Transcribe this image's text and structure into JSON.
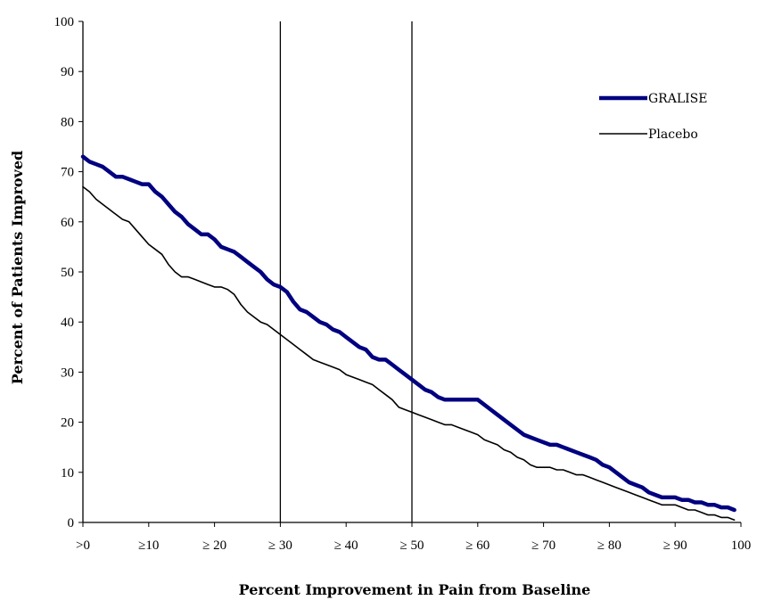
{
  "chart_data": {
    "type": "line",
    "xlabel": "Percent Improvement in Pain from Baseline",
    "ylabel": "Percent of Patients Improved",
    "xlim": [
      0,
      100
    ],
    "ylim": [
      0,
      100
    ],
    "x_tick_labels": [
      {
        "x": 0,
        "label": ">0"
      },
      {
        "x": 10,
        "label": "≥10"
      },
      {
        "x": 20,
        "label": "≥ 20"
      },
      {
        "x": 30,
        "label": "≥ 30"
      },
      {
        "x": 40,
        "label": "≥ 40"
      },
      {
        "x": 50,
        "label": "≥ 50"
      },
      {
        "x": 60,
        "label": "≥ 60"
      },
      {
        "x": 70,
        "label": "≥ 70"
      },
      {
        "x": 80,
        "label": "≥ 80"
      },
      {
        "x": 90,
        "label": "≥ 90"
      },
      {
        "x": 100,
        "label": "100"
      }
    ],
    "y_ticks": [
      0,
      10,
      20,
      30,
      40,
      50,
      60,
      70,
      80,
      90,
      100
    ],
    "reference_lines_x": [
      30,
      50
    ],
    "legend_position": "top-right",
    "grid": false,
    "series": [
      {
        "name": "GRALISE",
        "color": "#000080",
        "points": [
          [
            0,
            73
          ],
          [
            1,
            72
          ],
          [
            2,
            71.5
          ],
          [
            3,
            71
          ],
          [
            4,
            70
          ],
          [
            5,
            69
          ],
          [
            6,
            69
          ],
          [
            7,
            68.5
          ],
          [
            8,
            68
          ],
          [
            9,
            67.5
          ],
          [
            10,
            67.5
          ],
          [
            11,
            66
          ],
          [
            12,
            65
          ],
          [
            13,
            63.5
          ],
          [
            14,
            62
          ],
          [
            15,
            61
          ],
          [
            16,
            59.5
          ],
          [
            17,
            58.5
          ],
          [
            18,
            57.5
          ],
          [
            19,
            57.5
          ],
          [
            20,
            56.5
          ],
          [
            21,
            55
          ],
          [
            22,
            54.5
          ],
          [
            23,
            54
          ],
          [
            24,
            53
          ],
          [
            25,
            52
          ],
          [
            26,
            51
          ],
          [
            27,
            50
          ],
          [
            28,
            48.5
          ],
          [
            29,
            47.5
          ],
          [
            30,
            47
          ],
          [
            31,
            46
          ],
          [
            32,
            44
          ],
          [
            33,
            42.5
          ],
          [
            34,
            42
          ],
          [
            35,
            41
          ],
          [
            36,
            40
          ],
          [
            37,
            39.5
          ],
          [
            38,
            38.5
          ],
          [
            39,
            38
          ],
          [
            40,
            37
          ],
          [
            41,
            36
          ],
          [
            42,
            35
          ],
          [
            43,
            34.5
          ],
          [
            44,
            33
          ],
          [
            45,
            32.5
          ],
          [
            46,
            32.5
          ],
          [
            47,
            31.5
          ],
          [
            48,
            30.5
          ],
          [
            49,
            29.5
          ],
          [
            50,
            28.5
          ],
          [
            51,
            27.5
          ],
          [
            52,
            26.5
          ],
          [
            53,
            26
          ],
          [
            54,
            25
          ],
          [
            55,
            24.5
          ],
          [
            56,
            24.5
          ],
          [
            57,
            24.5
          ],
          [
            58,
            24.5
          ],
          [
            59,
            24.5
          ],
          [
            60,
            24.5
          ],
          [
            61,
            23.5
          ],
          [
            62,
            22.5
          ],
          [
            63,
            21.5
          ],
          [
            64,
            20.5
          ],
          [
            65,
            19.5
          ],
          [
            66,
            18.5
          ],
          [
            67,
            17.5
          ],
          [
            68,
            17
          ],
          [
            69,
            16.5
          ],
          [
            70,
            16
          ],
          [
            71,
            15.5
          ],
          [
            72,
            15.5
          ],
          [
            73,
            15
          ],
          [
            74,
            14.5
          ],
          [
            75,
            14
          ],
          [
            76,
            13.5
          ],
          [
            77,
            13
          ],
          [
            78,
            12.5
          ],
          [
            79,
            11.5
          ],
          [
            80,
            11
          ],
          [
            81,
            10
          ],
          [
            82,
            9
          ],
          [
            83,
            8
          ],
          [
            84,
            7.5
          ],
          [
            85,
            7
          ],
          [
            86,
            6
          ],
          [
            87,
            5.5
          ],
          [
            88,
            5
          ],
          [
            89,
            5
          ],
          [
            90,
            5
          ],
          [
            91,
            4.5
          ],
          [
            92,
            4.5
          ],
          [
            93,
            4
          ],
          [
            94,
            4
          ],
          [
            95,
            3.5
          ],
          [
            96,
            3.5
          ],
          [
            97,
            3
          ],
          [
            98,
            3
          ],
          [
            99,
            2.5
          ]
        ]
      },
      {
        "name": "Placebo",
        "color": "#000000",
        "points": [
          [
            0,
            67
          ],
          [
            1,
            66
          ],
          [
            2,
            64.5
          ],
          [
            3,
            63.5
          ],
          [
            4,
            62.5
          ],
          [
            5,
            61.5
          ],
          [
            6,
            60.5
          ],
          [
            7,
            60
          ],
          [
            8,
            58.5
          ],
          [
            9,
            57
          ],
          [
            10,
            55.5
          ],
          [
            11,
            54.5
          ],
          [
            12,
            53.5
          ],
          [
            13,
            51.5
          ],
          [
            14,
            50
          ],
          [
            15,
            49
          ],
          [
            16,
            49
          ],
          [
            17,
            48.5
          ],
          [
            18,
            48
          ],
          [
            19,
            47.5
          ],
          [
            20,
            47
          ],
          [
            21,
            47
          ],
          [
            22,
            46.5
          ],
          [
            23,
            45.5
          ],
          [
            24,
            43.5
          ],
          [
            25,
            42
          ],
          [
            26,
            41
          ],
          [
            27,
            40
          ],
          [
            28,
            39.5
          ],
          [
            29,
            38.5
          ],
          [
            30,
            37.5
          ],
          [
            31,
            36.5
          ],
          [
            32,
            35.5
          ],
          [
            33,
            34.5
          ],
          [
            34,
            33.5
          ],
          [
            35,
            32.5
          ],
          [
            36,
            32
          ],
          [
            37,
            31.5
          ],
          [
            38,
            31
          ],
          [
            39,
            30.5
          ],
          [
            40,
            29.5
          ],
          [
            41,
            29
          ],
          [
            42,
            28.5
          ],
          [
            43,
            28
          ],
          [
            44,
            27.5
          ],
          [
            45,
            26.5
          ],
          [
            46,
            25.5
          ],
          [
            47,
            24.5
          ],
          [
            48,
            23
          ],
          [
            49,
            22.5
          ],
          [
            50,
            22
          ],
          [
            51,
            21.5
          ],
          [
            52,
            21
          ],
          [
            53,
            20.5
          ],
          [
            54,
            20
          ],
          [
            55,
            19.5
          ],
          [
            56,
            19.5
          ],
          [
            57,
            19
          ],
          [
            58,
            18.5
          ],
          [
            59,
            18
          ],
          [
            60,
            17.5
          ],
          [
            61,
            16.5
          ],
          [
            62,
            16
          ],
          [
            63,
            15.5
          ],
          [
            64,
            14.5
          ],
          [
            65,
            14
          ],
          [
            66,
            13
          ],
          [
            67,
            12.5
          ],
          [
            68,
            11.5
          ],
          [
            69,
            11
          ],
          [
            70,
            11
          ],
          [
            71,
            11
          ],
          [
            72,
            10.5
          ],
          [
            73,
            10.5
          ],
          [
            74,
            10
          ],
          [
            75,
            9.5
          ],
          [
            76,
            9.5
          ],
          [
            77,
            9
          ],
          [
            78,
            8.5
          ],
          [
            79,
            8
          ],
          [
            80,
            7.5
          ],
          [
            81,
            7
          ],
          [
            82,
            6.5
          ],
          [
            83,
            6
          ],
          [
            84,
            5.5
          ],
          [
            85,
            5
          ],
          [
            86,
            4.5
          ],
          [
            87,
            4
          ],
          [
            88,
            3.5
          ],
          [
            89,
            3.5
          ],
          [
            90,
            3.5
          ],
          [
            91,
            3
          ],
          [
            92,
            2.5
          ],
          [
            93,
            2.5
          ],
          [
            94,
            2
          ],
          [
            95,
            1.5
          ],
          [
            96,
            1.5
          ],
          [
            97,
            1
          ],
          [
            98,
            1
          ],
          [
            99,
            0.5
          ]
        ]
      }
    ]
  }
}
